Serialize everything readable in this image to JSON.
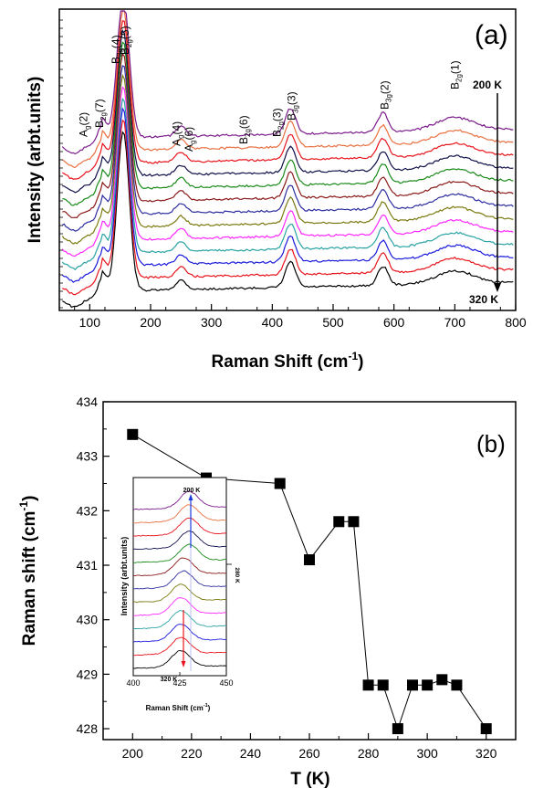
{
  "chart_data": [
    {
      "type": "line",
      "panel_label": "(a)",
      "xlabel": "Raman Shift (cm",
      "xlabel_sup": "-1",
      "xlabel_end": ")",
      "ylabel": "Intensity (arbt.units)",
      "xlim": [
        50,
        800
      ],
      "x_ticks": [
        "100",
        "200",
        "300",
        "400",
        "500",
        "600",
        "700",
        "800"
      ],
      "top_temperature": "200 K",
      "bottom_temperature": "320 K",
      "mode_labels": [
        {
          "main": "A",
          "sub": "g",
          "tail": "(2)",
          "x": 90
        },
        {
          "main": "B",
          "sub": "2g",
          "tail": "(7)",
          "x": 116
        },
        {
          "main": "B",
          "sub": "3g",
          "tail": "(4)",
          "x": 143
        },
        {
          "main": "B",
          "sub": "2g",
          "tail": "(5)",
          "x": 158
        },
        {
          "main": "A",
          "sub": "g",
          "tail": "(4)",
          "x": 243
        },
        {
          "main": "A",
          "sub": "g",
          "tail": "(6)",
          "x": 263
        },
        {
          "main": "B",
          "sub": "2g",
          "tail": "(6)",
          "x": 353
        },
        {
          "main": "B",
          "sub": "2g",
          "tail": "(3)",
          "x": 408
        },
        {
          "main": "B",
          "sub": "3g",
          "tail": "(3)",
          "x": 432
        },
        {
          "main": "B",
          "sub": "3g",
          "tail": "(2)",
          "x": 585
        },
        {
          "main": "B",
          "sub": "2g",
          "tail": "(1)",
          "x": 700
        }
      ],
      "series_colors": [
        "#000000",
        "#e8141c",
        "#1a1adc",
        "#2aa3a3",
        "#ff28ff",
        "#7a7a10",
        "#2d2da0",
        "#8b1a1a",
        "#1a8a1a",
        "#10104a",
        "#e8141c",
        "#e87040",
        "#7a1a8a"
      ],
      "peaks": [
        {
          "center": 155,
          "amplitude": 1.0
        },
        {
          "center": 120,
          "amplitude": 0.12
        },
        {
          "center": 250,
          "amplitude": 0.06
        },
        {
          "center": 430,
          "amplitude": 0.16
        },
        {
          "center": 582,
          "amplitude": 0.12
        },
        {
          "center": 700,
          "amplitude": 0.08
        }
      ]
    },
    {
      "type": "scatter",
      "panel_label": "(b)",
      "xlabel": "T (K)",
      "ylabel": "Raman shift (cm",
      "ylabel_sup": "-1",
      "ylabel_end": ")",
      "xlim": [
        190,
        330
      ],
      "ylim": [
        427.8,
        434
      ],
      "x_ticks": [
        "200",
        "220",
        "240",
        "260",
        "280",
        "300",
        "320"
      ],
      "y_ticks": [
        "428",
        "429",
        "430",
        "431",
        "432",
        "433",
        "434"
      ],
      "x": [
        200,
        225,
        250,
        260,
        270,
        275,
        280,
        285,
        290,
        295,
        300,
        305,
        310,
        320
      ],
      "y": [
        433.4,
        432.6,
        432.5,
        431.1,
        431.8,
        431.8,
        428.8,
        428.8,
        428.0,
        428.8,
        428.8,
        428.9,
        428.8,
        428.0
      ],
      "marker": "square",
      "marker_color": "#000000",
      "inset": {
        "xlabel": "Raman Shift (cm",
        "xlabel_sup": "-1",
        "xlabel_end": ")",
        "ylabel": "Intensity (arbt.units)",
        "xlim": [
          400,
          450
        ],
        "x_ticks": [
          "400",
          "425",
          "450"
        ],
        "top_temperature": "200 K",
        "middle_temperature": "280 K",
        "bottom_temperature": "320 K",
        "series_colors": [
          "#000000",
          "#e8141c",
          "#1a1adc",
          "#2aa3a3",
          "#ff28ff",
          "#7a7a10",
          "#2d2da0",
          "#8b1a1a",
          "#1a8a1a",
          "#10104a",
          "#e8141c",
          "#e87040",
          "#7a1a8a"
        ]
      }
    }
  ]
}
